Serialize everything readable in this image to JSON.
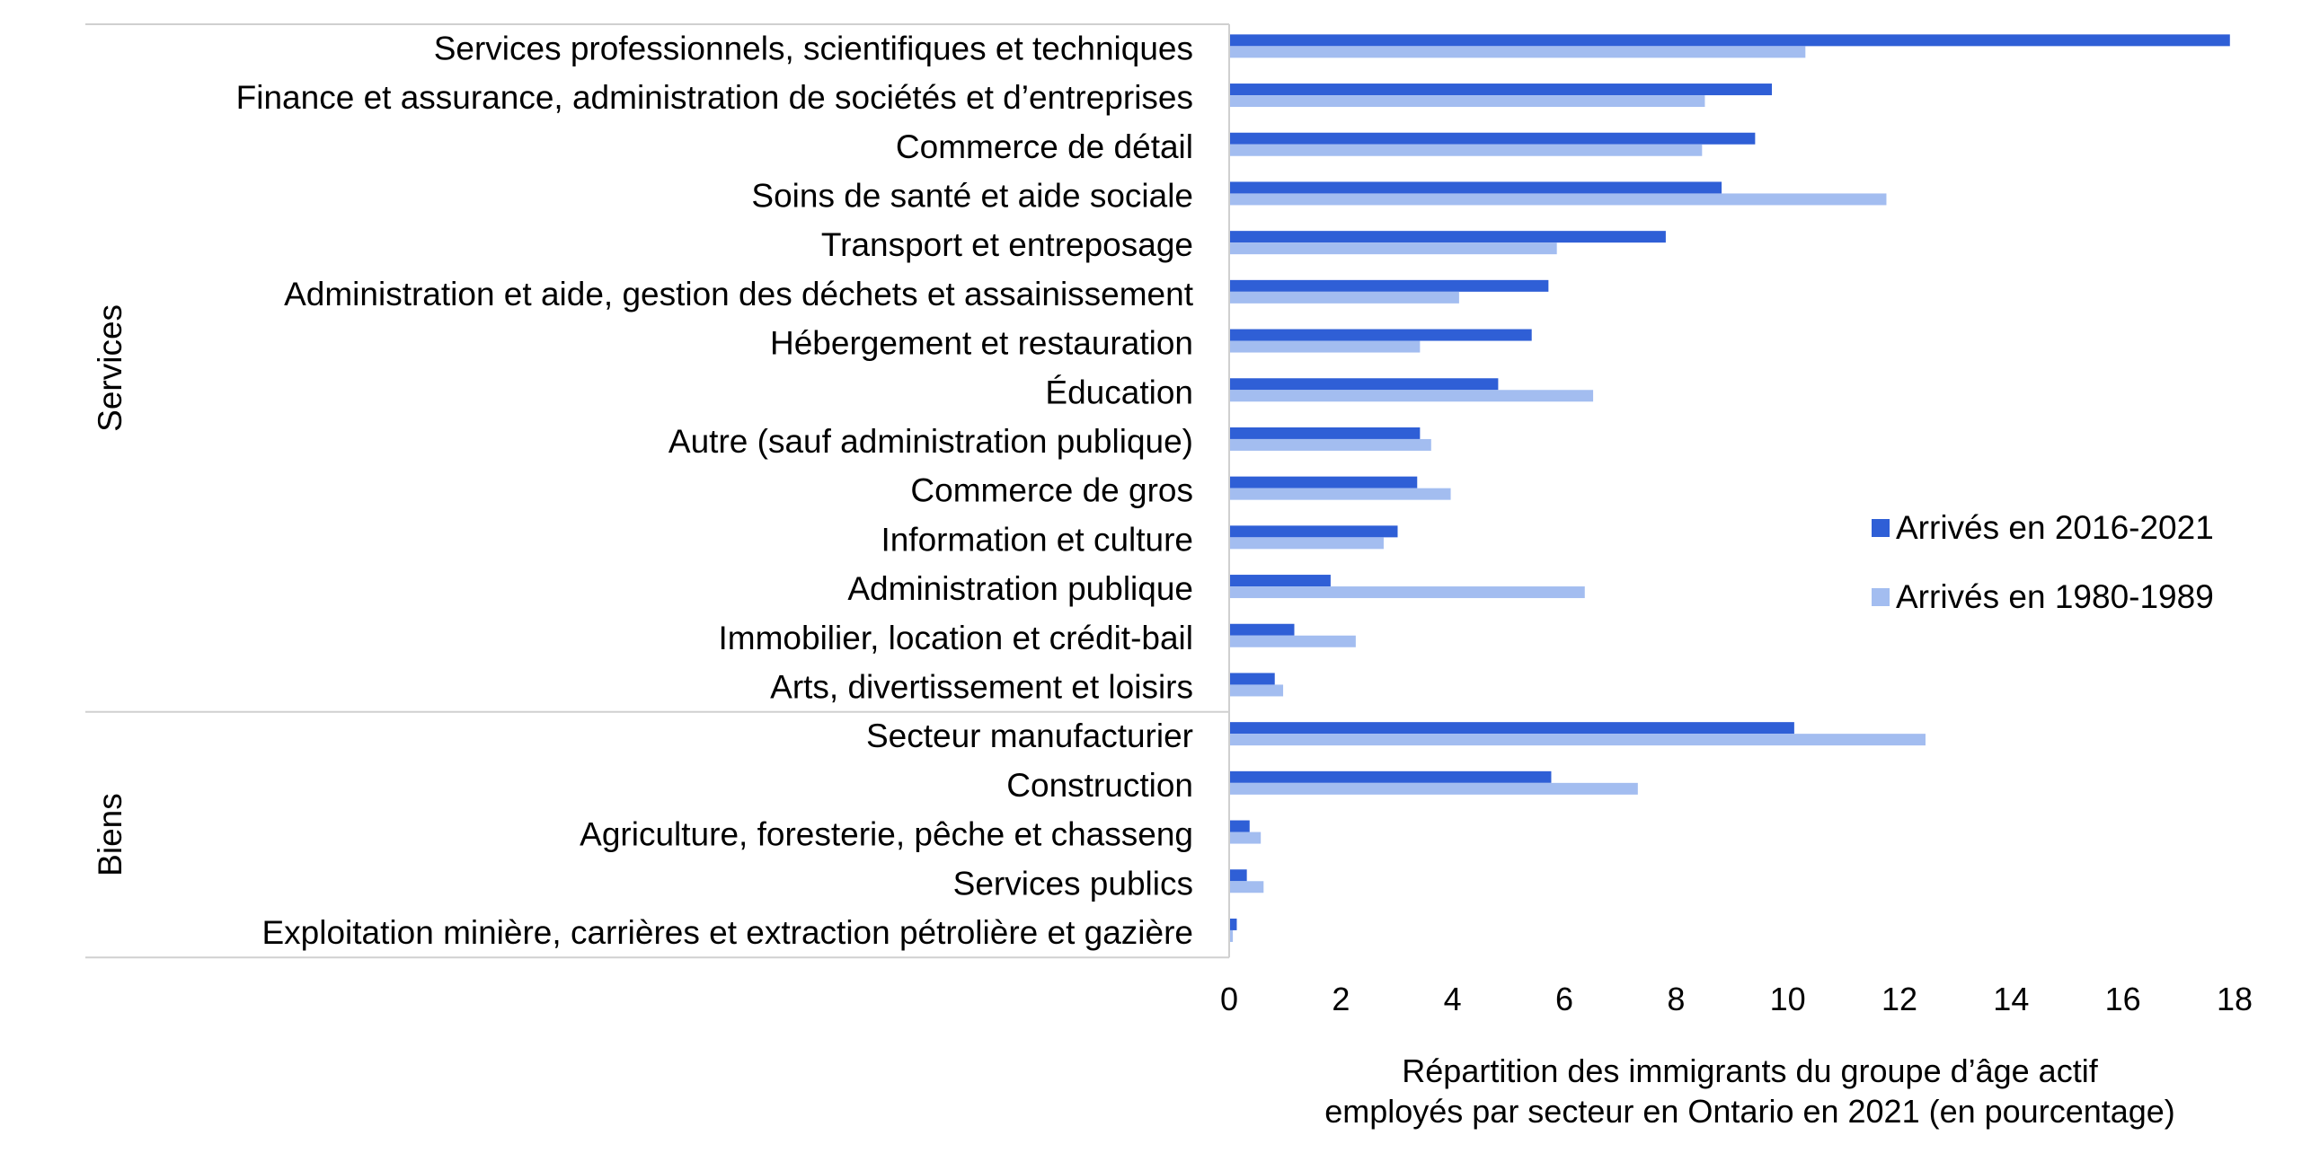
{
  "chart_data": {
    "type": "bar",
    "orientation": "horizontal",
    "title": "",
    "xlabel": [
      "Répartition des immigrants du groupe d’âge actif",
      "employés par secteur en Ontario en 2021 (en pourcentage)"
    ],
    "ylabel": "",
    "xlim": [
      0,
      18
    ],
    "xticks": [
      0,
      2,
      4,
      6,
      8,
      10,
      12,
      14,
      16,
      18
    ],
    "grid": false,
    "legend_position": "right",
    "groups": [
      {
        "name": "Services",
        "start": 0,
        "end": 14
      },
      {
        "name": "Biens",
        "start": 14,
        "end": 19
      }
    ],
    "categories": [
      "Services professionnels, scientifiques et techniques",
      "Finance et assurance, administration de sociétés et d’entreprises",
      "Commerce de détail",
      "Soins de santé et aide sociale",
      "Transport et entreposage",
      "Administration et aide, gestion des déchets et assainissement",
      "Hébergement et restauration",
      "Éducation",
      "Autre (sauf administration publique)",
      "Commerce de gros",
      "Information et culture",
      "Administration publique",
      "Immobilier, location et crédit-bail",
      "Arts, divertissement et loisirs",
      "Secteur manufacturier",
      "Construction",
      "Agriculture, foresterie, pêche et chasseng",
      "Services publics",
      "Exploitation minière, carrières et extraction pétrolière et gazière"
    ],
    "series": [
      {
        "name": "Arrivés en 2016-2021",
        "color": "#2f5fd6",
        "values": [
          17.9,
          9.7,
          9.4,
          8.8,
          7.8,
          5.7,
          5.4,
          4.8,
          3.4,
          3.35,
          3.0,
          1.8,
          1.15,
          0.8,
          10.1,
          5.75,
          0.35,
          0.3,
          0.12
        ]
      },
      {
        "name": "Arrivés en 1980-1989",
        "color": "#a3bdf0",
        "values": [
          10.3,
          8.5,
          8.45,
          11.75,
          5.85,
          4.1,
          3.4,
          6.5,
          3.6,
          3.95,
          2.75,
          6.35,
          2.25,
          0.95,
          12.45,
          7.3,
          0.55,
          0.6,
          0.05
        ]
      }
    ]
  }
}
